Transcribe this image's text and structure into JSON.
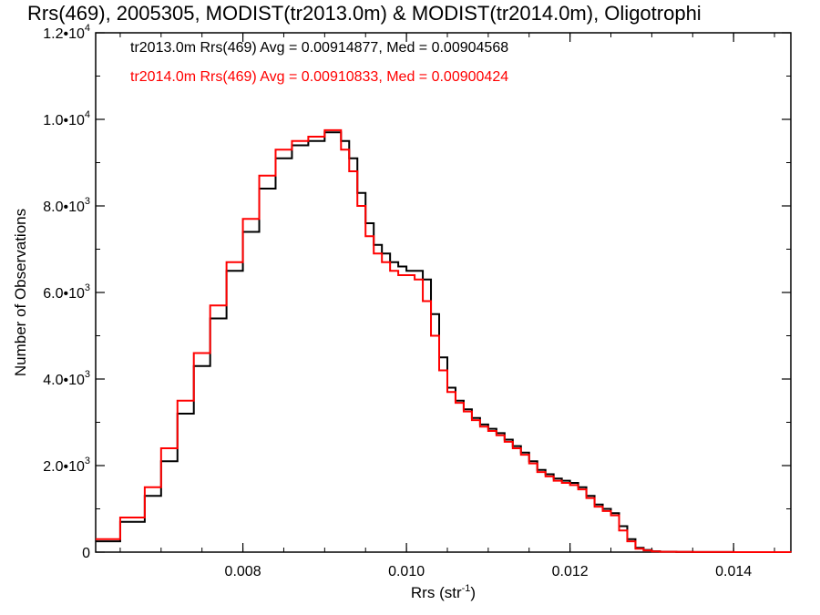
{
  "chart_data": {
    "type": "line",
    "title": "Rrs(469), 2005305, MODIST(tr2013.0m) & MODIST(tr2014.0m), Oligotrophi",
    "xlabel": "Rrs (str",
    "xlabel_sup": "-1",
    "xlabel_end": ")",
    "ylabel": "Number of Observations",
    "xlim": [
      0.0062,
      0.0147
    ],
    "ylim": [
      0,
      12000
    ],
    "x_ticks": [
      {
        "value": 0.008,
        "label": "0.008"
      },
      {
        "value": 0.01,
        "label": "0.010"
      },
      {
        "value": 0.012,
        "label": "0.012"
      },
      {
        "value": 0.014,
        "label": "0.014"
      }
    ],
    "y_ticks": [
      {
        "value": 0,
        "mant": "0",
        "exp": ""
      },
      {
        "value": 2000,
        "mant": "2.0•10",
        "exp": "3"
      },
      {
        "value": 4000,
        "mant": "4.0•10",
        "exp": "3"
      },
      {
        "value": 6000,
        "mant": "6.0•10",
        "exp": "3"
      },
      {
        "value": 8000,
        "mant": "8.0•10",
        "exp": "3"
      },
      {
        "value": 10000,
        "mant": "1.0•10",
        "exp": "4"
      },
      {
        "value": 12000,
        "mant": "1.2•10",
        "exp": "4"
      }
    ],
    "grid": false,
    "legend_position": "top-left",
    "series": [
      {
        "name": "tr2013.0m",
        "color": "#000000",
        "legend": "tr2013.0m Rrs(469) Avg = 0.00914877, Med = 0.00904568",
        "x": [
          0.0062,
          0.0065,
          0.0068,
          0.007,
          0.0072,
          0.0074,
          0.0076,
          0.0078,
          0.008,
          0.0082,
          0.0084,
          0.0086,
          0.0088,
          0.009,
          0.0092,
          0.0093,
          0.0094,
          0.0095,
          0.0096,
          0.0097,
          0.0098,
          0.0099,
          0.01,
          0.0101,
          0.0102,
          0.0103,
          0.0104,
          0.0105,
          0.0106,
          0.0107,
          0.0108,
          0.0109,
          0.011,
          0.0111,
          0.0112,
          0.0113,
          0.0114,
          0.0115,
          0.0116,
          0.0117,
          0.0118,
          0.0119,
          0.012,
          0.0121,
          0.0122,
          0.0123,
          0.0124,
          0.0125,
          0.0126,
          0.0127,
          0.0128,
          0.0129,
          0.013,
          0.0131,
          0.0133,
          0.0135,
          0.014,
          0.0147
        ],
        "y": [
          250,
          700,
          1300,
          2100,
          3200,
          4300,
          5400,
          6500,
          7400,
          8400,
          9100,
          9400,
          9500,
          9700,
          9500,
          9100,
          8300,
          7600,
          7100,
          6900,
          6700,
          6600,
          6500,
          6500,
          6300,
          5500,
          4500,
          3800,
          3500,
          3300,
          3100,
          2950,
          2850,
          2750,
          2600,
          2450,
          2300,
          2100,
          1900,
          1800,
          1700,
          1650,
          1600,
          1500,
          1300,
          1100,
          1000,
          900,
          600,
          300,
          100,
          50,
          20,
          10,
          5,
          3,
          1,
          0
        ]
      },
      {
        "name": "tr2014.0m",
        "color": "#ff0000",
        "legend": "tr2014.0m Rrs(469) Avg = 0.00910833, Med = 0.00900424",
        "x": [
          0.0062,
          0.0065,
          0.0068,
          0.007,
          0.0072,
          0.0074,
          0.0076,
          0.0078,
          0.008,
          0.0082,
          0.0084,
          0.0086,
          0.0088,
          0.009,
          0.0092,
          0.0093,
          0.0094,
          0.0095,
          0.0096,
          0.0097,
          0.0098,
          0.0099,
          0.01,
          0.0101,
          0.0102,
          0.0103,
          0.0104,
          0.0105,
          0.0106,
          0.0107,
          0.0108,
          0.0109,
          0.011,
          0.0111,
          0.0112,
          0.0113,
          0.0114,
          0.0115,
          0.0116,
          0.0117,
          0.0118,
          0.0119,
          0.012,
          0.0121,
          0.0122,
          0.0123,
          0.0124,
          0.0125,
          0.0126,
          0.0127,
          0.0128,
          0.0129,
          0.013,
          0.0131,
          0.0133,
          0.0135,
          0.014,
          0.0147
        ],
        "y": [
          300,
          800,
          1500,
          2400,
          3500,
          4600,
          5700,
          6700,
          7700,
          8700,
          9300,
          9500,
          9600,
          9750,
          9300,
          8800,
          8000,
          7300,
          6900,
          6700,
          6500,
          6400,
          6400,
          6300,
          5800,
          5000,
          4200,
          3700,
          3450,
          3250,
          3050,
          2900,
          2800,
          2700,
          2550,
          2400,
          2250,
          2050,
          1850,
          1750,
          1650,
          1600,
          1550,
          1450,
          1250,
          1050,
          950,
          850,
          500,
          250,
          80,
          40,
          15,
          8,
          4,
          2,
          1,
          0
        ]
      }
    ]
  }
}
